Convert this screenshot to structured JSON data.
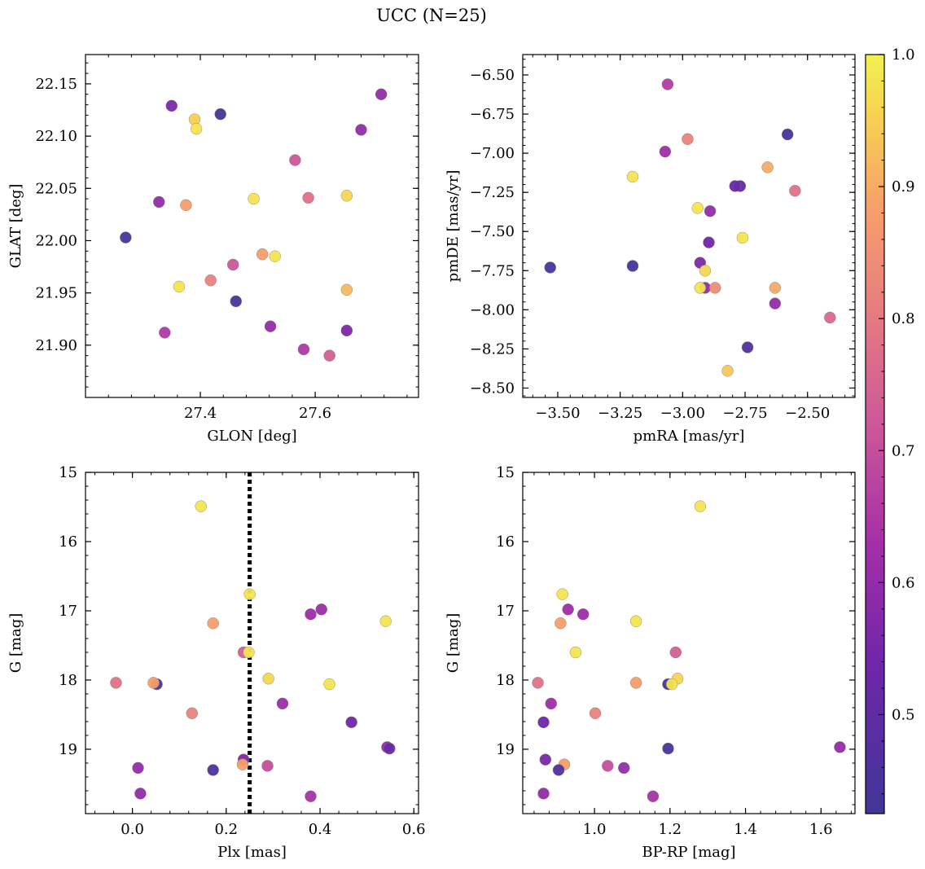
{
  "figure": {
    "title": "UCC (N=25)"
  },
  "chart_data": [
    {
      "type": "scatter",
      "panel": "top-left",
      "xlabel": "GLON [deg]",
      "ylabel": "GLAT [deg]",
      "xlim": [
        27.2,
        27.78
      ],
      "ylim": [
        21.85,
        22.178
      ],
      "xticks": [
        27.4,
        27.6
      ],
      "xtick_labels": [
        "27.4",
        "27.6"
      ],
      "yticks": [
        21.9,
        21.95,
        22.0,
        22.05,
        22.1,
        22.15
      ],
      "ytick_labels": [
        "21.90",
        "21.95",
        "22.00",
        "22.05",
        "22.10",
        "22.15"
      ],
      "points": [
        {
          "x": 27.35,
          "y": 22.129,
          "c": 0.56
        },
        {
          "x": 27.39,
          "y": 22.116,
          "c": 0.95
        },
        {
          "x": 27.393,
          "y": 22.107,
          "c": 0.98
        },
        {
          "x": 27.435,
          "y": 22.121,
          "c": 0.43
        },
        {
          "x": 27.715,
          "y": 22.14,
          "c": 0.6
        },
        {
          "x": 27.68,
          "y": 22.106,
          "c": 0.6
        },
        {
          "x": 27.565,
          "y": 22.077,
          "c": 0.72
        },
        {
          "x": 27.328,
          "y": 22.037,
          "c": 0.6
        },
        {
          "x": 27.375,
          "y": 22.034,
          "c": 0.88
        },
        {
          "x": 27.493,
          "y": 22.04,
          "c": 0.98
        },
        {
          "x": 27.588,
          "y": 22.041,
          "c": 0.78
        },
        {
          "x": 27.655,
          "y": 22.043,
          "c": 0.96
        },
        {
          "x": 27.27,
          "y": 22.003,
          "c": 0.44
        },
        {
          "x": 27.508,
          "y": 21.987,
          "c": 0.88
        },
        {
          "x": 27.53,
          "y": 21.985,
          "c": 0.98
        },
        {
          "x": 27.457,
          "y": 21.977,
          "c": 0.72
        },
        {
          "x": 27.418,
          "y": 21.962,
          "c": 0.82
        },
        {
          "x": 27.363,
          "y": 21.956,
          "c": 0.98
        },
        {
          "x": 27.655,
          "y": 21.953,
          "c": 0.92
        },
        {
          "x": 27.462,
          "y": 21.942,
          "c": 0.44
        },
        {
          "x": 27.522,
          "y": 21.918,
          "c": 0.6
        },
        {
          "x": 27.338,
          "y": 21.912,
          "c": 0.65
        },
        {
          "x": 27.655,
          "y": 21.914,
          "c": 0.56
        },
        {
          "x": 27.58,
          "y": 21.896,
          "c": 0.65
        },
        {
          "x": 27.625,
          "y": 21.89,
          "c": 0.74
        }
      ]
    },
    {
      "type": "scatter",
      "panel": "top-right",
      "xlabel": "pmRA [mas/yr]",
      "ylabel": "pmDE [mas/yr]",
      "xlim": [
        -3.64,
        -2.31
      ],
      "ylim": [
        -8.56,
        -6.37
      ],
      "xticks": [
        -3.5,
        -3.25,
        -3.0,
        -2.75,
        -2.5
      ],
      "xtick_labels": [
        "−3.50",
        "−3.25",
        "−3.00",
        "−2.75",
        "−2.50"
      ],
      "yticks": [
        -8.5,
        -8.25,
        -8.0,
        -7.75,
        -7.5,
        -7.25,
        -7.0,
        -6.75,
        -6.5
      ],
      "ytick_labels": [
        "−8.50",
        "−8.25",
        "−8.00",
        "−7.75",
        "−7.50",
        "−7.25",
        "−7.00",
        "−6.75",
        "−6.50"
      ],
      "points": [
        {
          "x": -3.06,
          "y": -6.56,
          "c": 0.66
        },
        {
          "x": -2.98,
          "y": -6.91,
          "c": 0.82
        },
        {
          "x": -3.07,
          "y": -6.99,
          "c": 0.62
        },
        {
          "x": -2.58,
          "y": -6.88,
          "c": 0.44
        },
        {
          "x": -3.2,
          "y": -7.15,
          "c": 0.98
        },
        {
          "x": -2.66,
          "y": -7.09,
          "c": 0.9
        },
        {
          "x": -2.55,
          "y": -7.24,
          "c": 0.78
        },
        {
          "x": -2.77,
          "y": -7.21,
          "c": 0.5
        },
        {
          "x": -2.79,
          "y": -7.21,
          "c": 0.52
        },
        {
          "x": -2.94,
          "y": -7.35,
          "c": 0.98
        },
        {
          "x": -2.89,
          "y": -7.37,
          "c": 0.6
        },
        {
          "x": -2.76,
          "y": -7.54,
          "c": 0.98
        },
        {
          "x": -2.895,
          "y": -7.57,
          "c": 0.54
        },
        {
          "x": -3.53,
          "y": -7.73,
          "c": 0.44
        },
        {
          "x": -3.2,
          "y": -7.72,
          "c": 0.44
        },
        {
          "x": -2.93,
          "y": -7.7,
          "c": 0.56
        },
        {
          "x": -2.91,
          "y": -7.75,
          "c": 0.96
        },
        {
          "x": -2.91,
          "y": -7.86,
          "c": 0.6
        },
        {
          "x": -2.93,
          "y": -7.86,
          "c": 0.98
        },
        {
          "x": -2.87,
          "y": -7.86,
          "c": 0.84
        },
        {
          "x": -2.63,
          "y": -7.86,
          "c": 0.9
        },
        {
          "x": -2.63,
          "y": -7.96,
          "c": 0.6
        },
        {
          "x": -2.41,
          "y": -8.05,
          "c": 0.76
        },
        {
          "x": -2.74,
          "y": -8.24,
          "c": 0.46
        },
        {
          "x": -2.82,
          "y": -8.39,
          "c": 0.94
        }
      ]
    },
    {
      "type": "scatter",
      "panel": "bottom-left",
      "xlabel": "Plx [mas]",
      "ylabel": "G [mag]",
      "xlim": [
        -0.1,
        0.61
      ],
      "ylim": [
        19.93,
        15.0
      ],
      "y_inverted": true,
      "xticks": [
        0.0,
        0.2,
        0.4,
        0.6
      ],
      "xtick_labels": [
        "0.0",
        "0.2",
        "0.4",
        "0.6"
      ],
      "yticks": [
        15,
        16,
        17,
        18,
        19
      ],
      "ytick_labels": [
        "15",
        "16",
        "17",
        "18",
        "19"
      ],
      "vline": {
        "x": 0.25,
        "style": "dotted",
        "color": "#000000"
      },
      "points": [
        {
          "x": 0.146,
          "y": 15.49,
          "c": 0.98
        },
        {
          "x": 0.25,
          "y": 16.76,
          "c": 0.98
        },
        {
          "x": 0.403,
          "y": 16.98,
          "c": 0.62
        },
        {
          "x": 0.38,
          "y": 17.05,
          "c": 0.62
        },
        {
          "x": 0.54,
          "y": 17.15,
          "c": 0.98
        },
        {
          "x": 0.172,
          "y": 17.18,
          "c": 0.88
        },
        {
          "x": 0.237,
          "y": 17.6,
          "c": 0.74
        },
        {
          "x": 0.248,
          "y": 17.6,
          "c": 0.98
        },
        {
          "x": 0.29,
          "y": 17.98,
          "c": 0.96
        },
        {
          "x": -0.035,
          "y": 18.04,
          "c": 0.78
        },
        {
          "x": 0.052,
          "y": 18.06,
          "c": 0.44
        },
        {
          "x": 0.045,
          "y": 18.04,
          "c": 0.88
        },
        {
          "x": 0.42,
          "y": 18.06,
          "c": 0.98
        },
        {
          "x": 0.32,
          "y": 18.34,
          "c": 0.62
        },
        {
          "x": 0.127,
          "y": 18.48,
          "c": 0.82
        },
        {
          "x": 0.467,
          "y": 18.61,
          "c": 0.54
        },
        {
          "x": 0.543,
          "y": 18.97,
          "c": 0.6
        },
        {
          "x": 0.548,
          "y": 18.99,
          "c": 0.52
        },
        {
          "x": 0.237,
          "y": 19.15,
          "c": 0.56
        },
        {
          "x": 0.235,
          "y": 19.22,
          "c": 0.88
        },
        {
          "x": 0.288,
          "y": 19.24,
          "c": 0.7
        },
        {
          "x": 0.012,
          "y": 19.27,
          "c": 0.6
        },
        {
          "x": 0.172,
          "y": 19.3,
          "c": 0.46
        },
        {
          "x": 0.017,
          "y": 19.64,
          "c": 0.6
        },
        {
          "x": 0.38,
          "y": 19.68,
          "c": 0.64
        }
      ]
    },
    {
      "type": "scatter",
      "panel": "bottom-right",
      "xlabel": "BP-RP [mag]",
      "ylabel": "G [mag]",
      "xlim": [
        0.81,
        1.69
      ],
      "ylim": [
        19.93,
        15.0
      ],
      "y_inverted": true,
      "xticks": [
        1.0,
        1.2,
        1.4,
        1.6
      ],
      "xtick_labels": [
        "1.0",
        "1.2",
        "1.4",
        "1.6"
      ],
      "yticks": [
        15,
        16,
        17,
        18,
        19
      ],
      "ytick_labels": [
        "15",
        "16",
        "17",
        "18",
        "19"
      ],
      "points": [
        {
          "x": 1.28,
          "y": 15.49,
          "c": 0.98
        },
        {
          "x": 0.915,
          "y": 16.76,
          "c": 0.98
        },
        {
          "x": 0.93,
          "y": 16.98,
          "c": 0.62
        },
        {
          "x": 0.97,
          "y": 17.05,
          "c": 0.62
        },
        {
          "x": 1.11,
          "y": 17.15,
          "c": 0.98
        },
        {
          "x": 0.91,
          "y": 17.18,
          "c": 0.88
        },
        {
          "x": 1.215,
          "y": 17.6,
          "c": 0.74
        },
        {
          "x": 0.95,
          "y": 17.6,
          "c": 0.98
        },
        {
          "x": 1.22,
          "y": 17.98,
          "c": 0.96
        },
        {
          "x": 0.85,
          "y": 18.04,
          "c": 0.78
        },
        {
          "x": 1.195,
          "y": 18.06,
          "c": 0.44
        },
        {
          "x": 1.11,
          "y": 18.04,
          "c": 0.88
        },
        {
          "x": 1.205,
          "y": 18.06,
          "c": 0.98
        },
        {
          "x": 0.885,
          "y": 18.34,
          "c": 0.62
        },
        {
          "x": 1.002,
          "y": 18.48,
          "c": 0.82
        },
        {
          "x": 0.865,
          "y": 18.61,
          "c": 0.54
        },
        {
          "x": 1.65,
          "y": 18.97,
          "c": 0.6
        },
        {
          "x": 1.195,
          "y": 18.99,
          "c": 0.44
        },
        {
          "x": 0.87,
          "y": 19.15,
          "c": 0.56
        },
        {
          "x": 0.92,
          "y": 19.22,
          "c": 0.88
        },
        {
          "x": 1.035,
          "y": 19.24,
          "c": 0.7
        },
        {
          "x": 1.078,
          "y": 19.27,
          "c": 0.6
        },
        {
          "x": 0.905,
          "y": 19.3,
          "c": 0.46
        },
        {
          "x": 0.865,
          "y": 19.64,
          "c": 0.6
        },
        {
          "x": 1.155,
          "y": 19.68,
          "c": 0.64
        }
      ]
    }
  ],
  "colorbar": {
    "cmap": "plasma",
    "min": 0.425,
    "max": 1.0,
    "ticks": [
      0.5,
      0.6,
      0.7,
      0.8,
      0.9,
      1.0
    ],
    "tick_labels": [
      "0.5",
      "0.6",
      "0.7",
      "0.8",
      "0.9",
      "1.0"
    ]
  }
}
